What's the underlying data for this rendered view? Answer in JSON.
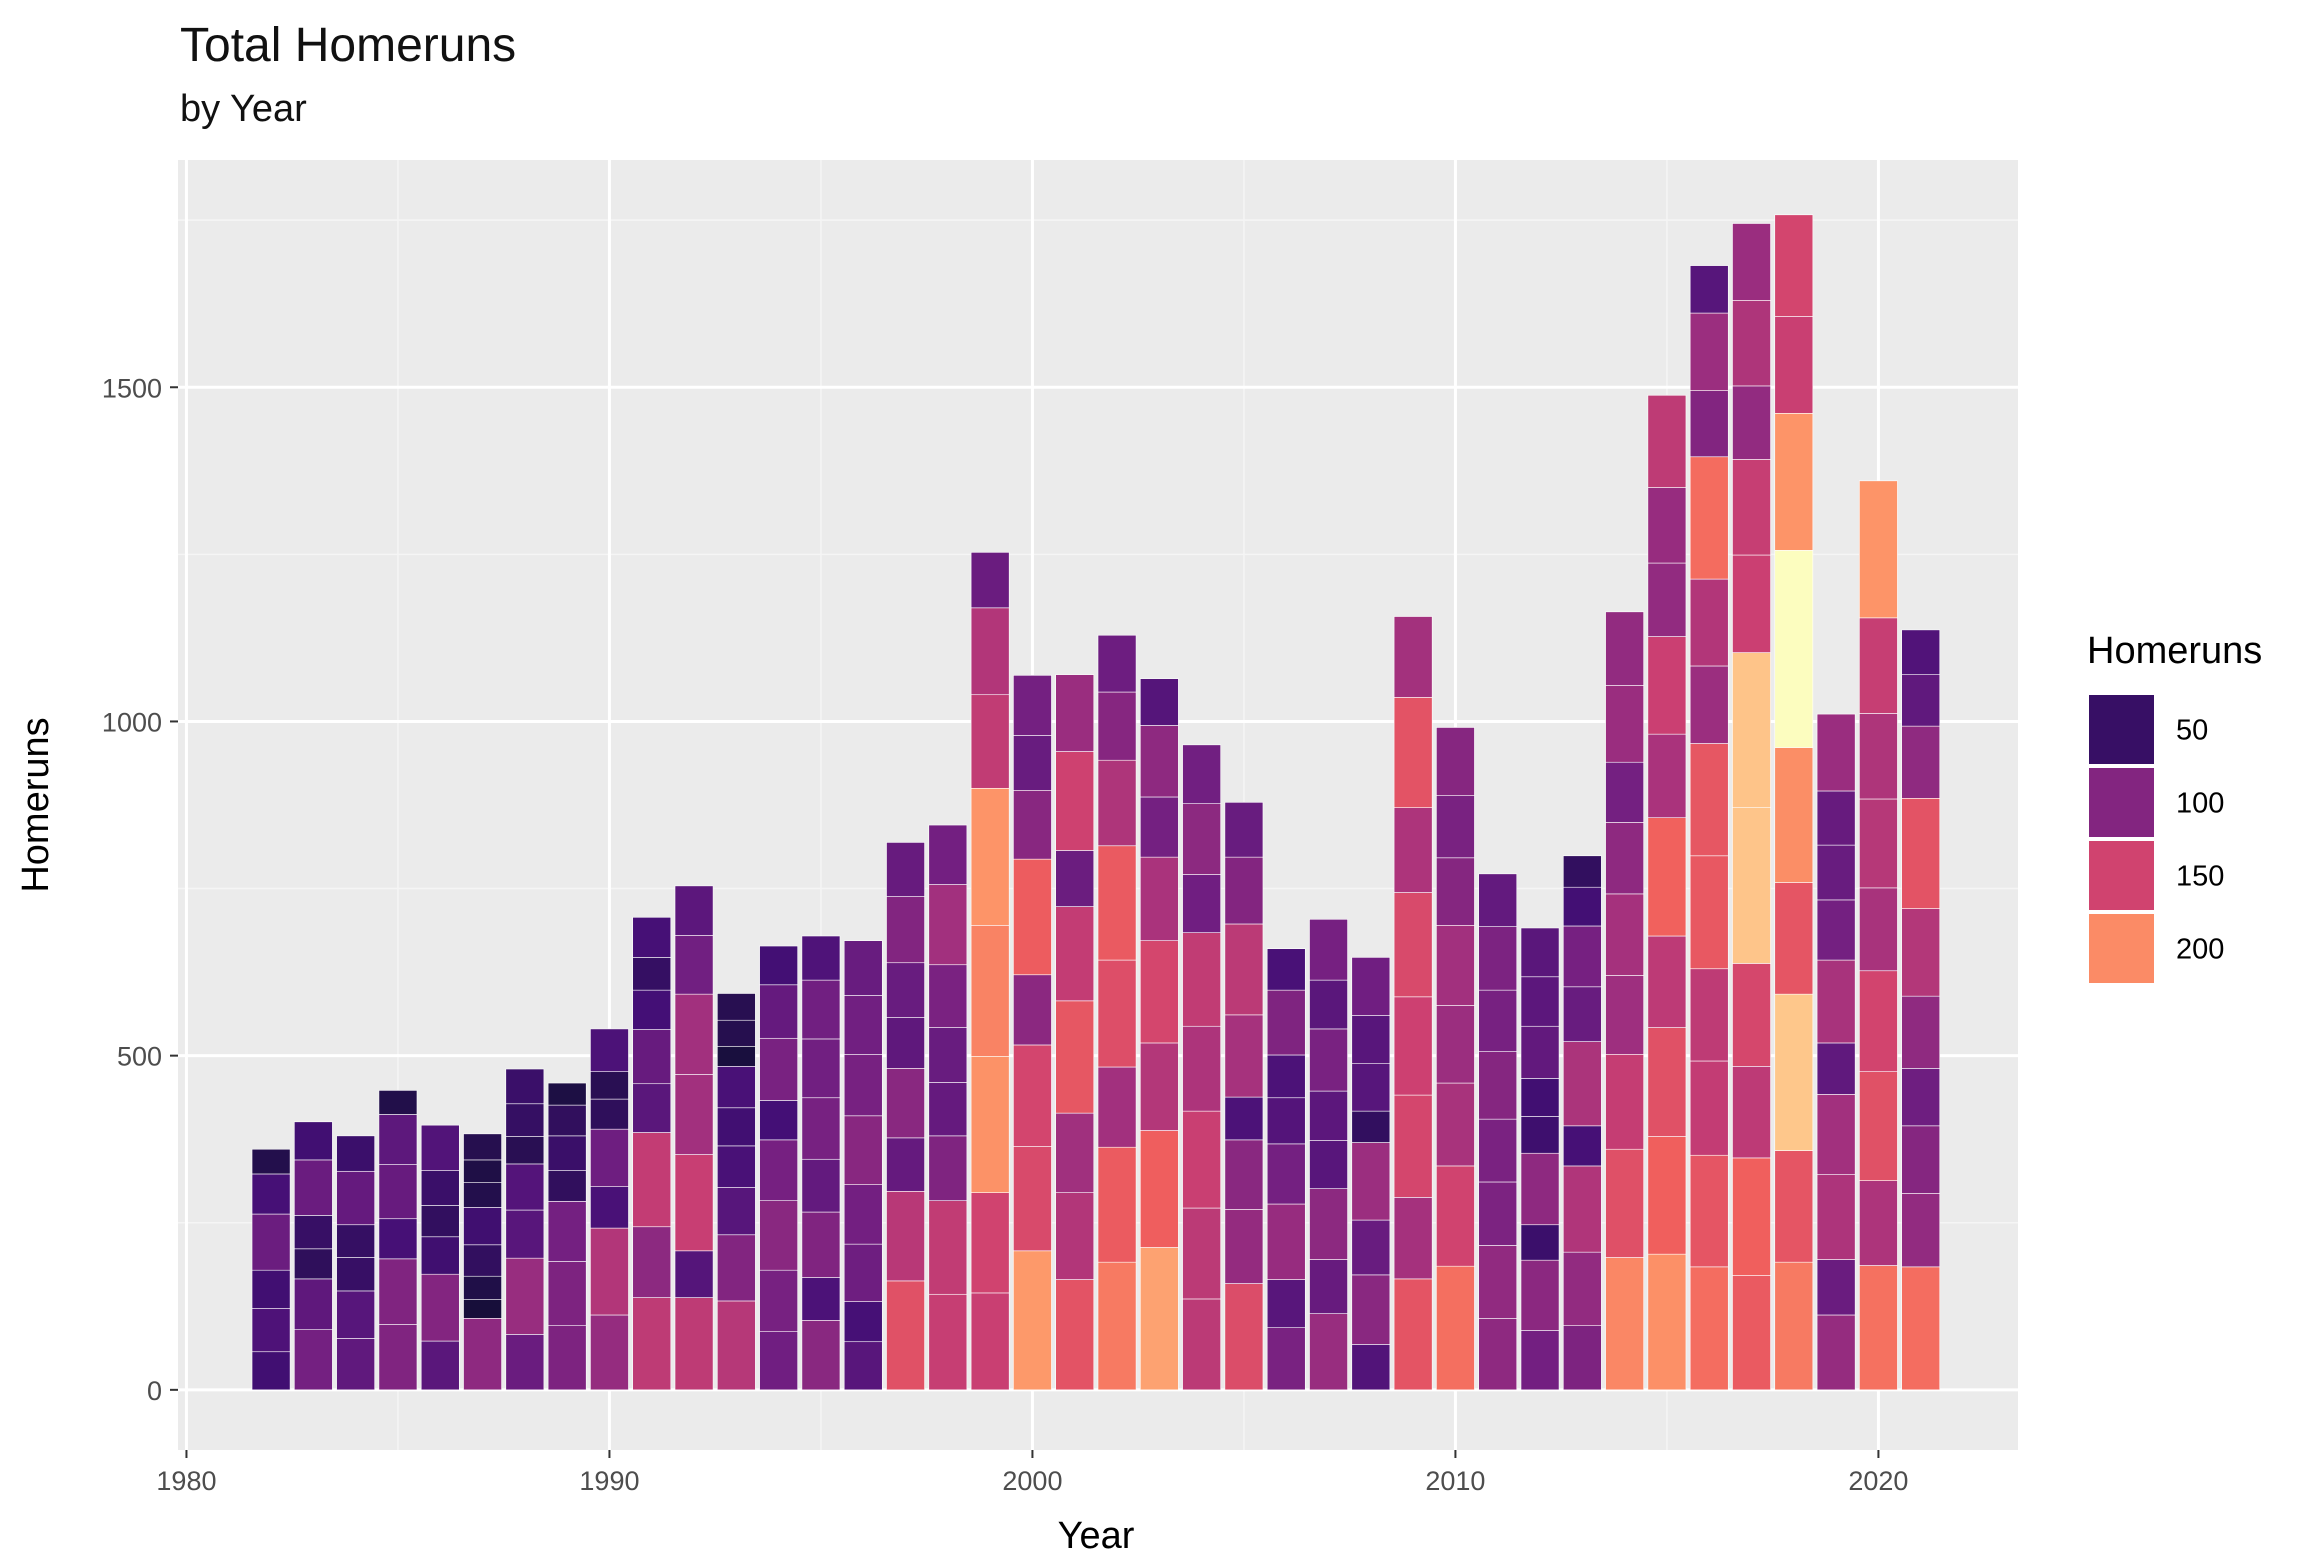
{
  "chart_data": {
    "type": "bar",
    "stacked": true,
    "title": "Total Homeruns",
    "subtitle": "by Year",
    "xlabel": "Year",
    "ylabel": "Homeruns",
    "xlim": [
      1979.8,
      2023.3
    ],
    "ylim": [
      -90,
      1840
    ],
    "x_ticks": [
      1980,
      1990,
      2000,
      2010,
      2020
    ],
    "y_ticks": [
      0,
      500,
      1000,
      1500
    ],
    "grid": true,
    "legend": {
      "title": "Homeruns",
      "position": "right",
      "entries": [
        {
          "label": "50",
          "value": 50
        },
        {
          "label": "100",
          "value": 100
        },
        {
          "label": "150",
          "value": 150
        },
        {
          "label": "200",
          "value": 200
        }
      ]
    },
    "color_scale": {
      "name": "magma",
      "domain": [
        0,
        265
      ],
      "stops": [
        "#000004",
        "#180f3d",
        "#440f76",
        "#721f81",
        "#9e2f7f",
        "#cd4071",
        "#f1605d",
        "#fd9668",
        "#feca8d",
        "#fcfdbf"
      ]
    },
    "years": [
      {
        "year": 1982,
        "segments": [
          57,
          65,
          57,
          84,
          60,
          37
        ]
      },
      {
        "year": 1983,
        "segments": [
          90,
          76,
          45,
          50,
          83,
          57
        ]
      },
      {
        "year": 1984,
        "segments": [
          77,
          71,
          50,
          49,
          80,
          53
        ]
      },
      {
        "year": 1985,
        "segments": [
          98,
          98,
          60,
          81,
          75,
          36
        ]
      },
      {
        "year": 1986,
        "segments": [
          73,
          100,
          56,
          47,
          52,
          68
        ]
      },
      {
        "year": 1987,
        "segments": [
          107,
          28,
          35,
          47,
          56,
          37,
          34,
          39
        ]
      },
      {
        "year": 1988,
        "segments": [
          83,
          114,
          72,
          69,
          41,
          49,
          52
        ]
      },
      {
        "year": 1989,
        "segments": [
          96,
          96,
          90,
          46,
          52,
          46,
          33
        ]
      },
      {
        "year": 1990,
        "segments": [
          112,
          130,
          62,
          86,
          45,
          41,
          64
        ]
      },
      {
        "year": 1991,
        "segments": [
          138,
          106,
          141,
          73,
          81,
          59,
          49,
          60
        ]
      },
      {
        "year": 1992,
        "segments": [
          138,
          70,
          144,
          120,
          120,
          88,
          74
        ]
      },
      {
        "year": 1993,
        "segments": [
          133,
          99,
          71,
          62,
          57,
          62,
          30,
          39,
          40
        ]
      },
      {
        "year": 1994,
        "segments": [
          87,
          92,
          104,
          91,
          59,
          93,
          80,
          58
        ]
      },
      {
        "year": 1995,
        "segments": [
          104,
          64,
          98,
          79,
          92,
          88,
          88,
          66
        ]
      },
      {
        "year": 1996,
        "segments": [
          72,
          60,
          86,
          89,
          103,
          92,
          88,
          82
        ]
      },
      {
        "year": 1997,
        "segments": [
          163,
          134,
          80,
          104,
          76,
          82,
          99,
          81
        ]
      },
      {
        "year": 1998,
        "segments": [
          143,
          140,
          97,
          80,
          82,
          94,
          120,
          89
        ]
      },
      {
        "year": 1999,
        "segments": [
          145,
          150,
          204,
          196,
          205,
          140,
          130,
          83
        ]
      },
      {
        "year": 2000,
        "segments": [
          208,
          156,
          152,
          105,
          173,
          103,
          82,
          90
        ]
      },
      {
        "year": 2001,
        "segments": [
          165,
          130,
          119,
          168,
          141,
          84,
          148,
          115
        ]
      },
      {
        "year": 2002,
        "segments": [
          191,
          172,
          120,
          160,
          171,
          128,
          102,
          85
        ]
      },
      {
        "year": 2003,
        "segments": [
          213,
          175,
          131,
          153,
          125,
          90,
          107,
          70
        ]
      },
      {
        "year": 2004,
        "segments": [
          136,
          136,
          145,
          127,
          140,
          87,
          106,
          88
        ]
      },
      {
        "year": 2005,
        "segments": [
          159,
          111,
          104,
          64,
          123,
          136,
          100,
          82
        ]
      },
      {
        "year": 2006,
        "segments": [
          93,
          72,
          113,
          90,
          69,
          64,
          97,
          62
        ]
      },
      {
        "year": 2007,
        "segments": [
          114,
          81,
          106,
          72,
          74,
          93,
          73,
          91
        ]
      },
      {
        "year": 2008,
        "segments": [
          68,
          104,
          82,
          116,
          47,
          71,
          72,
          87
        ]
      },
      {
        "year": 2009,
        "segments": [
          166,
          122,
          153,
          147,
          156,
          127,
          165,
          121
        ]
      },
      {
        "year": 2010,
        "segments": [
          185,
          150,
          124,
          116,
          120,
          101,
          93,
          102
        ]
      },
      {
        "year": 2011,
        "segments": [
          107,
          109,
          95,
          94,
          101,
          92,
          95,
          79
        ]
      },
      {
        "year": 2012,
        "segments": [
          89,
          105,
          53,
          107,
          55,
          57,
          78,
          74,
          73
        ]
      },
      {
        "year": 2013,
        "segments": [
          96,
          110,
          129,
          60,
          126,
          82,
          91,
          58,
          47
        ]
      },
      {
        "year": 2014,
        "segments": [
          198,
          162,
          142,
          118,
          122,
          107,
          90,
          115,
          110
        ]
      },
      {
        "year": 2015,
        "segments": [
          203,
          176,
          163,
          137,
          177,
          125,
          146,
          110,
          113,
          138
        ]
      },
      {
        "year": 2016,
        "segments": [
          184,
          167,
          141,
          138,
          169,
          168,
          116,
          130,
          183,
          99,
          116,
          71
        ]
      },
      {
        "year": 2017,
        "segments": [
          171,
          176,
          137,
          154,
          233,
          232,
          146,
          143,
          110,
          128,
          115
        ]
      },
      {
        "year": 2018,
        "segments": [
          191,
          167,
          234,
          167,
          202,
          295,
          205,
          145,
          152
        ]
      },
      {
        "year": 2019,
        "segments": [
          112,
          83,
          127,
          120,
          77,
          124,
          90,
          82,
          81,
          115
        ]
      },
      {
        "year": 2020,
        "segments": [
          186,
          127,
          163,
          151,
          124,
          133,
          128,
          143,
          205
        ]
      },
      {
        "year": 2021,
        "segments": [
          184,
          110,
          101,
          86,
          108,
          131,
          165,
          108,
          77,
          67
        ]
      }
    ]
  }
}
